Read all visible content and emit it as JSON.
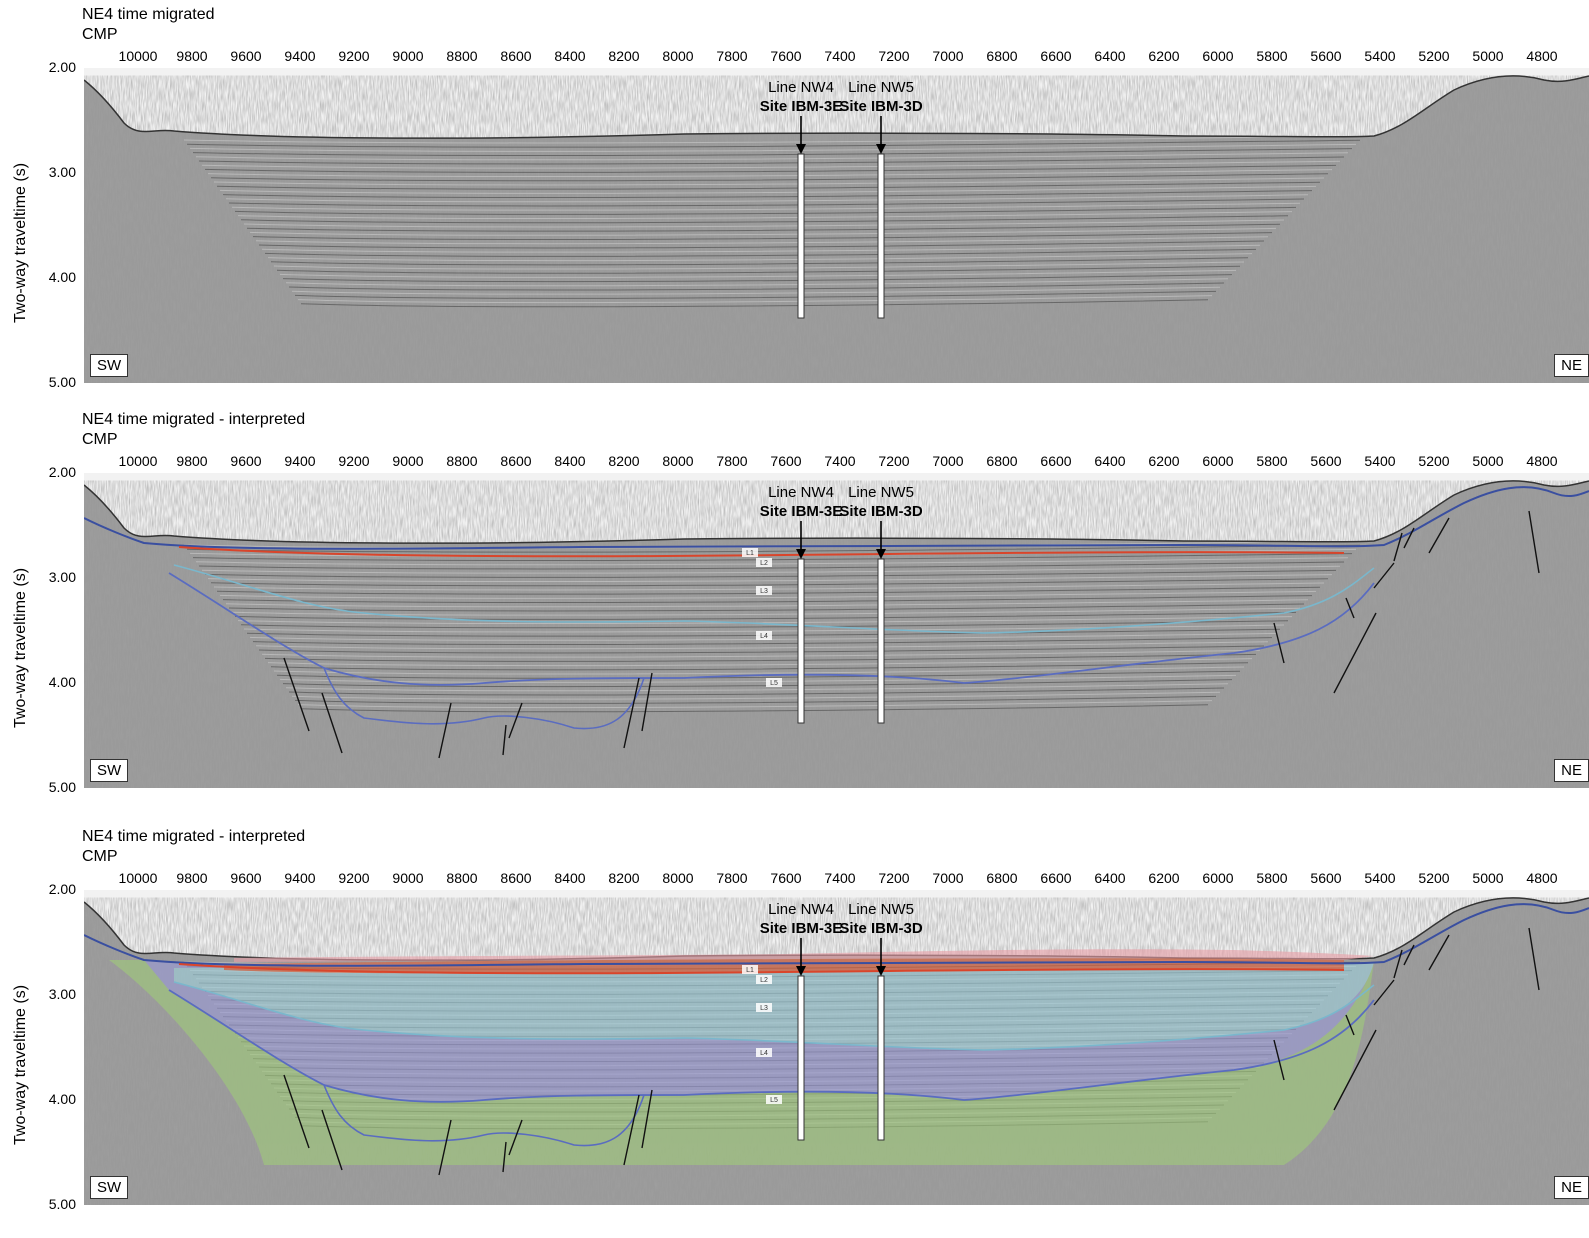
{
  "panels": [
    {
      "title": "NE4 time migrated",
      "cmp_label": "CMP",
      "corner_left": "SW",
      "corner_right": "NE",
      "site_a": {
        "line": "Line NW4",
        "site": "Site IBM-3E"
      },
      "site_b": {
        "line": "Line NW5",
        "site": "Site IBM-3D"
      },
      "interpreted": false,
      "filled": false
    },
    {
      "title": "NE4 time migrated - interpreted",
      "cmp_label": "CMP",
      "corner_left": "SW",
      "corner_right": "NE",
      "site_a": {
        "line": "Line NW4",
        "site": "Site IBM-3E"
      },
      "site_b": {
        "line": "Line NW5",
        "site": "Site IBM-3D"
      },
      "interpreted": true,
      "filled": false,
      "unit_labels": [
        "L1",
        "L2",
        "L3",
        "L4",
        "L5"
      ]
    },
    {
      "title": "NE4 time migrated - interpreted",
      "cmp_label": "CMP",
      "corner_left": "SW",
      "corner_right": "NE",
      "site_a": {
        "line": "Line NW4",
        "site": "Site IBM-3E"
      },
      "site_b": {
        "line": "Line NW5",
        "site": "Site IBM-3D"
      },
      "interpreted": true,
      "filled": true,
      "unit_labels": [
        "L1",
        "L2",
        "L3",
        "L4",
        "L5"
      ]
    }
  ],
  "x_ticks": [
    "10000",
    "9800",
    "9600",
    "9400",
    "9200",
    "9000",
    "8800",
    "8600",
    "8400",
    "8200",
    "8000",
    "7800",
    "7600",
    "7400",
    "7200",
    "7000",
    "6800",
    "6600",
    "6400",
    "6200",
    "6000",
    "5800",
    "5600",
    "5400",
    "5200",
    "5000",
    "4800"
  ],
  "y_ticks": [
    "2.00",
    "3.00",
    "4.00",
    "5.00"
  ],
  "y_axis_title": "Two-way traveltime (s)",
  "colors": {
    "L1": "#e8a0a8",
    "L2": "#e0603a",
    "L3": "#9fd0dc",
    "L4": "#9a9ad6",
    "L5": "#9fca7a",
    "horizon_top": "#3a4fa0",
    "horizon_l2": "#d9452b",
    "horizon_l3": "#7ab7cc",
    "horizon_l4": "#5a6cc0",
    "fault": "#111111"
  }
}
